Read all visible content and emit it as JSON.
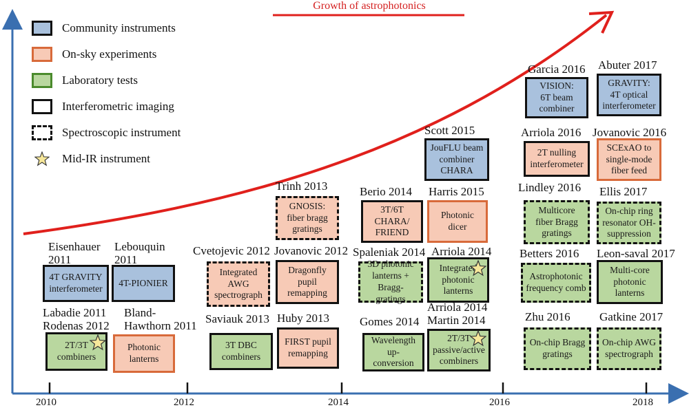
{
  "growth_label": "Growth of astrophotonics",
  "legend": [
    {
      "label": "Community instruments"
    },
    {
      "label": "On-sky experiments"
    },
    {
      "label": "Laboratory tests"
    },
    {
      "label": "Interferometric imaging"
    },
    {
      "label": "Spectroscopic instrument"
    },
    {
      "label": "Mid-IR instrument"
    }
  ],
  "axis": {
    "years": [
      "2010",
      "2012",
      "2014",
      "2016",
      "2018"
    ]
  },
  "colors": {
    "community": "#a9c1dd",
    "on_sky": "#f7cab6",
    "lab": "#b9d79f",
    "curve": "#e0201c",
    "axis": "#3a6fb0"
  },
  "entries": [
    {
      "id": "eisenhauer",
      "author": [
        "Eisenhauer",
        "2011"
      ],
      "box": [
        "4T GRAVITY",
        "interferometer"
      ]
    },
    {
      "id": "lebouquin",
      "author": [
        "Lebouquin",
        "2011"
      ],
      "box": [
        "4T-PIONIER"
      ]
    },
    {
      "id": "labadie",
      "author": [
        "Labadie 2011",
        "Rodenas 2012"
      ],
      "box": [
        "2T/3T",
        "combiners"
      ]
    },
    {
      "id": "bland",
      "author": [
        "Bland-",
        "Hawthorn 2011"
      ],
      "box": [
        "Photonic",
        "lanterns"
      ]
    },
    {
      "id": "cvetojevic",
      "author": [
        "Cvetojevic 2012"
      ],
      "box": [
        "Integrated",
        "AWG",
        "spectrograph"
      ]
    },
    {
      "id": "saviauk",
      "author": [
        "Saviauk 2013"
      ],
      "box": [
        "3T DBC",
        "combiners"
      ]
    },
    {
      "id": "trinh",
      "author": [
        "Trinh 2013"
      ],
      "box": [
        "GNOSIS:",
        "fiber bragg",
        "gratings"
      ]
    },
    {
      "id": "jovanovic2012",
      "author": [
        "Jovanovic 2012"
      ],
      "box": [
        "Dragonfly",
        "pupil",
        "remapping"
      ]
    },
    {
      "id": "huby",
      "author": [
        "Huby 2013"
      ],
      "box": [
        "FIRST pupil",
        "remapping"
      ]
    },
    {
      "id": "berio",
      "author": [
        "Berio 2014"
      ],
      "box": [
        "3T/6T",
        "CHARA/",
        "FRIEND"
      ]
    },
    {
      "id": "spaleniak",
      "author": [
        "Spaleniak 2014"
      ],
      "box": [
        "3D photonic",
        "lanterns +",
        "Bragg-gratings"
      ]
    },
    {
      "id": "gomes",
      "author": [
        "Gomes 2014"
      ],
      "box": [
        "Wavelength",
        "up-conversion"
      ]
    },
    {
      "id": "scott",
      "author": [
        "Scott 2015"
      ],
      "box": [
        "JouFLU beam",
        "combiner",
        "CHARA"
      ]
    },
    {
      "id": "harris",
      "author": [
        "Harris 2015"
      ],
      "box": [
        "Photonic",
        "dicer"
      ]
    },
    {
      "id": "arriola2014a",
      "author": [
        "Arriola 2014"
      ],
      "box": [
        "Integrated",
        "photonic",
        "lanterns"
      ]
    },
    {
      "id": "arriola2014b",
      "author": [
        "Arriola 2014",
        "Martin 2014"
      ],
      "box": [
        "2T/3T",
        "passive/active",
        "combiners"
      ]
    },
    {
      "id": "garcia",
      "author": [
        "Garcia 2016"
      ],
      "box": [
        "VISION:",
        "6T beam",
        "combiner"
      ]
    },
    {
      "id": "arriola2016",
      "author": [
        "Arriola 2016"
      ],
      "box": [
        "2T nulling",
        "interferometer"
      ]
    },
    {
      "id": "lindley",
      "author": [
        "Lindley 2016"
      ],
      "box": [
        "Multicore",
        "fiber Bragg",
        "gratings"
      ]
    },
    {
      "id": "betters",
      "author": [
        "Betters 2016"
      ],
      "box": [
        "Astrophotonic",
        "frequency comb"
      ]
    },
    {
      "id": "zhu",
      "author": [
        "Zhu 2016"
      ],
      "box": [
        "On-chip Bragg",
        "gratings"
      ]
    },
    {
      "id": "abuter",
      "author": [
        "Abuter 2017"
      ],
      "box": [
        "GRAVITY:",
        "4T optical",
        "interferometer"
      ]
    },
    {
      "id": "jovanovic2016",
      "author": [
        "Jovanovic 2016"
      ],
      "box": [
        "SCExAO to",
        "single-mode",
        "fiber feed"
      ]
    },
    {
      "id": "ellis",
      "author": [
        "Ellis 2017"
      ],
      "box": [
        "On-chip ring",
        "resonator OH-",
        "suppression"
      ]
    },
    {
      "id": "leonsaval",
      "author": [
        "Leon-saval 2017"
      ],
      "box": [
        "Multi-core",
        "photonic",
        "lanterns"
      ]
    },
    {
      "id": "gatkine",
      "author": [
        "Gatkine 2017"
      ],
      "box": [
        "On-chip AWG",
        "spectrograph"
      ]
    }
  ]
}
